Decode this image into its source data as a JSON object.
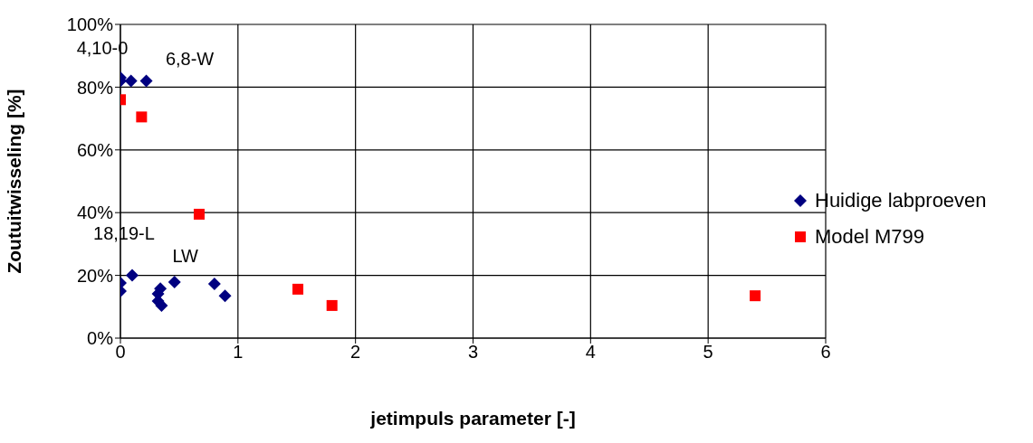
{
  "chart_data": {
    "type": "scatter",
    "xlabel": "jetimpuls parameter [-]",
    "ylabel": "Zoutuitwisseling [%]",
    "xlim": [
      0,
      6
    ],
    "xticks": [
      0,
      1,
      2,
      3,
      4,
      5,
      6
    ],
    "ylim": [
      0,
      100
    ],
    "yticks": [
      {
        "value": 0,
        "label": "0%"
      },
      {
        "value": 20,
        "label": "20%"
      },
      {
        "value": 40,
        "label": "40%"
      },
      {
        "value": 60,
        "label": "60%"
      },
      {
        "value": 80,
        "label": "80%"
      },
      {
        "value": 100,
        "label": "100%"
      }
    ],
    "grid": true,
    "legend": "right",
    "series": [
      {
        "name": "Huidige labproeven",
        "color": "#000080",
        "marker": "diamond",
        "x": [
          0,
          0,
          0.09,
          0.22,
          0,
          0,
          0.1,
          0.34,
          0.32,
          0.32,
          0.35,
          0.46,
          0.8,
          0.89
        ],
        "values": [
          83,
          82,
          82,
          82,
          17.6,
          15,
          20,
          15.8,
          14.1,
          11.8,
          10.4,
          17.9,
          17.3,
          13.5
        ]
      },
      {
        "name": "Model M799",
        "color": "#ff0000",
        "marker": "square",
        "x": [
          0,
          0.18,
          0.67,
          1.51,
          1.8,
          5.4
        ],
        "values": [
          76,
          70.5,
          39.5,
          15.6,
          10.4,
          13.5
        ]
      }
    ],
    "annotations": [
      {
        "text": "4,10-0",
        "x": 0,
        "y": 83
      },
      {
        "text": "6,8-W",
        "x": 0.22,
        "y": 82
      },
      {
        "text": "18,19-L",
        "x": 0.1,
        "y": 20
      },
      {
        "text": "LW",
        "x": 0.46,
        "y": 17.9
      }
    ]
  }
}
